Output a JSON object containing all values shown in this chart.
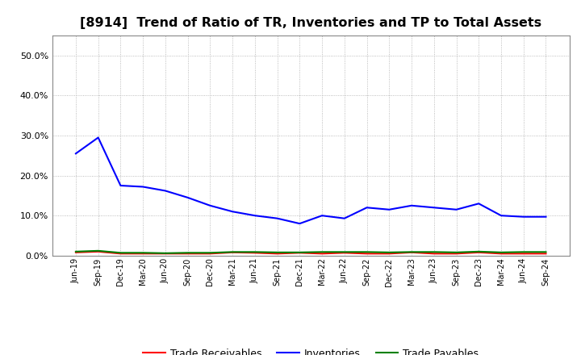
{
  "title": "[8914]  Trend of Ratio of TR, Inventories and TP to Total Assets",
  "x_labels": [
    "Jun-19",
    "Sep-19",
    "Dec-19",
    "Mar-20",
    "Jun-20",
    "Sep-20",
    "Dec-20",
    "Mar-21",
    "Jun-21",
    "Sep-21",
    "Dec-21",
    "Mar-22",
    "Jun-22",
    "Sep-22",
    "Dec-22",
    "Mar-23",
    "Jun-23",
    "Sep-23",
    "Dec-23",
    "Mar-24",
    "Jun-24",
    "Sep-24"
  ],
  "inventories": [
    0.255,
    0.295,
    0.175,
    0.172,
    0.162,
    0.145,
    0.125,
    0.11,
    0.1,
    0.093,
    0.08,
    0.1,
    0.093,
    0.12,
    0.115,
    0.125,
    0.12,
    0.115,
    0.13,
    0.1,
    0.097,
    0.097
  ],
  "trade_receivables": [
    0.008,
    0.01,
    0.005,
    0.005,
    0.005,
    0.005,
    0.005,
    0.008,
    0.007,
    0.005,
    0.007,
    0.005,
    0.007,
    0.005,
    0.005,
    0.008,
    0.005,
    0.005,
    0.008,
    0.005,
    0.005,
    0.005
  ],
  "trade_payables": [
    0.01,
    0.012,
    0.007,
    0.007,
    0.006,
    0.007,
    0.007,
    0.009,
    0.009,
    0.008,
    0.008,
    0.009,
    0.009,
    0.009,
    0.008,
    0.009,
    0.009,
    0.008,
    0.01,
    0.008,
    0.009,
    0.009
  ],
  "ylim": [
    0.0,
    0.55
  ],
  "yticks": [
    0.0,
    0.1,
    0.2,
    0.3,
    0.4,
    0.5
  ],
  "line_colors": {
    "inventories": "#0000FF",
    "trade_receivables": "#FF0000",
    "trade_payables": "#008000"
  },
  "legend_labels": [
    "Trade Receivables",
    "Inventories",
    "Trade Payables"
  ],
  "background_color": "#FFFFFF",
  "grid_color": "#AAAAAA",
  "title_fontsize": 11.5
}
